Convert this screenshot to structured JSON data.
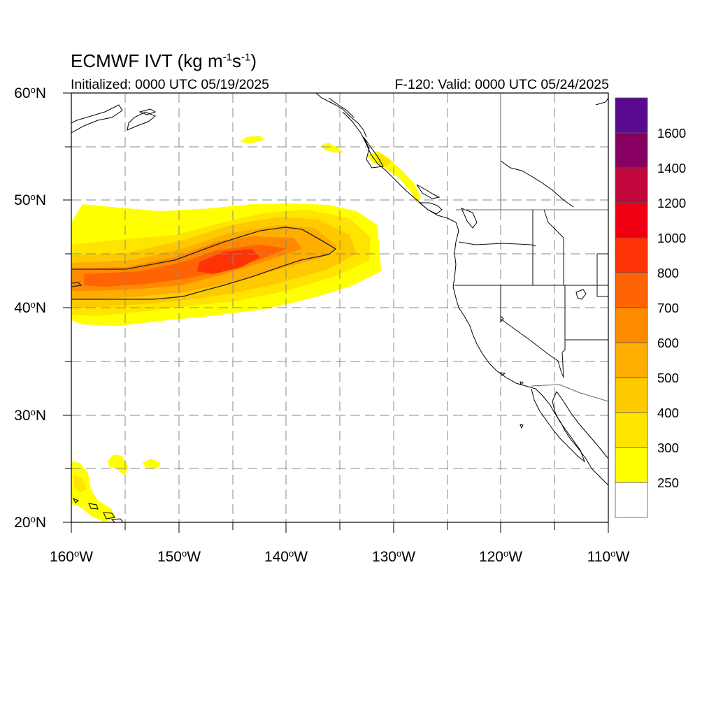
{
  "header": {
    "title_main": "ECMWF IVT (kg m",
    "title_exp1": "-1",
    "title_mid": "s",
    "title_exp2": "-1",
    "title_end": ")",
    "initialized": "Initialized: 0000 UTC 05/19/2025",
    "valid": "F-120: Valid: 0000 UTC 05/24/2025"
  },
  "map": {
    "projection": "cylindrical equidistant",
    "lon_range": [
      -160,
      -110
    ],
    "lat_range": [
      20,
      60
    ],
    "grid": true,
    "lat_ticks": [
      "60",
      "50",
      "40",
      "30",
      "20"
    ],
    "lon_ticks": [
      "160",
      "150",
      "140",
      "130",
      "120",
      "110"
    ],
    "lat_suffix": "N",
    "lon_suffix": "W",
    "degree_symbol": "o",
    "contour_line_value": 500
  },
  "colorbar": {
    "labels": [
      "1600",
      "1400",
      "1200",
      "1000",
      "800",
      "700",
      "600",
      "500",
      "400",
      "300",
      "250"
    ],
    "colors": [
      "#5a0a91",
      "#870061",
      "#c1063b",
      "#ee0012",
      "#ff3206",
      "#ff6404",
      "#ff8a00",
      "#ffad00",
      "#ffc900",
      "#ffe400",
      "#ffff00",
      "#ffffff"
    ]
  }
}
